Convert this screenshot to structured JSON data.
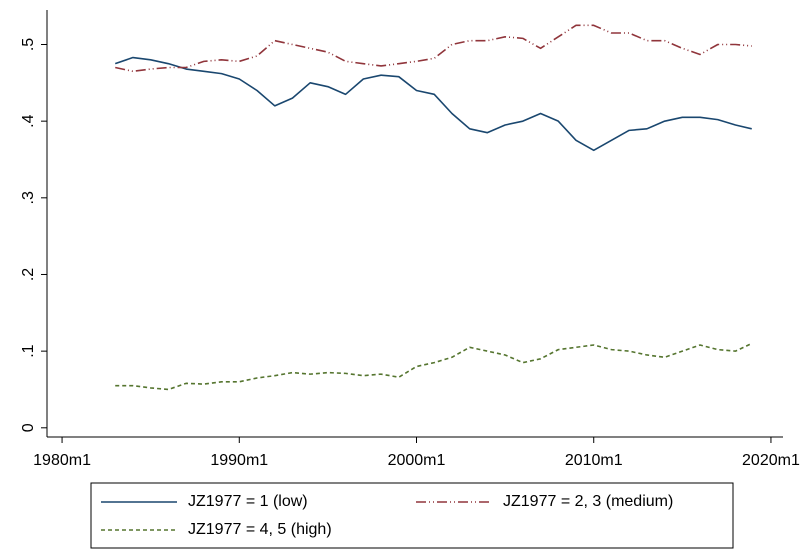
{
  "chart_data": {
    "type": "line",
    "x": [
      "1983m1",
      "1984m1",
      "1985m1",
      "1986m1",
      "1987m1",
      "1988m1",
      "1989m1",
      "1990m1",
      "1991m1",
      "1992m1",
      "1993m1",
      "1994m1",
      "1995m1",
      "1996m1",
      "1997m1",
      "1998m1",
      "1999m1",
      "2000m1",
      "2001m1",
      "2002m1",
      "2003m1",
      "2004m1",
      "2005m1",
      "2006m1",
      "2007m1",
      "2008m1",
      "2009m1",
      "2010m1",
      "2011m1",
      "2012m1",
      "2013m1",
      "2014m1",
      "2015m1",
      "2016m1",
      "2017m1",
      "2018m1",
      "2018m12"
    ],
    "series": [
      {
        "name": "JZ1977 = 1 (low)",
        "color": "#1a476f",
        "dash": "none",
        "values": [
          0.475,
          0.483,
          0.48,
          0.475,
          0.468,
          0.465,
          0.462,
          0.455,
          0.44,
          0.42,
          0.43,
          0.45,
          0.445,
          0.435,
          0.455,
          0.46,
          0.458,
          0.44,
          0.435,
          0.41,
          0.39,
          0.385,
          0.395,
          0.4,
          0.41,
          0.4,
          0.375,
          0.362,
          0.375,
          0.388,
          0.39,
          0.4,
          0.405,
          0.405,
          0.402,
          0.395,
          0.39
        ]
      },
      {
        "name": "JZ1977 = 2, 3 (medium)",
        "color": "#90353b",
        "dash": "10 3 1 3 1 3",
        "values": [
          0.47,
          0.465,
          0.468,
          0.47,
          0.47,
          0.478,
          0.48,
          0.478,
          0.485,
          0.505,
          0.5,
          0.495,
          0.49,
          0.478,
          0.475,
          0.472,
          0.475,
          0.478,
          0.482,
          0.5,
          0.505,
          0.505,
          0.51,
          0.508,
          0.495,
          0.51,
          0.525,
          0.525,
          0.515,
          0.515,
          0.505,
          0.505,
          0.495,
          0.487,
          0.5,
          0.5,
          0.498
        ]
      },
      {
        "name": "JZ1977 = 4, 5 (high)",
        "color": "#55752f",
        "dash": "4 3",
        "values": [
          0.055,
          0.055,
          0.052,
          0.05,
          0.058,
          0.057,
          0.06,
          0.06,
          0.065,
          0.068,
          0.072,
          0.07,
          0.072,
          0.071,
          0.068,
          0.07,
          0.066,
          0.08,
          0.085,
          0.092,
          0.105,
          0.1,
          0.095,
          0.085,
          0.09,
          0.102,
          0.105,
          0.108,
          0.102,
          0.1,
          0.095,
          0.092,
          0.1,
          0.108,
          0.102,
          0.1,
          0.11
        ]
      }
    ],
    "xlim": [
      1979.15,
      2020.68
    ],
    "xticks": [
      {
        "value": 1980,
        "label": "1980m1"
      },
      {
        "value": 1990,
        "label": "1990m1"
      },
      {
        "value": 2000,
        "label": "2000m1"
      },
      {
        "value": 2010,
        "label": "2010m1"
      },
      {
        "value": 2020,
        "label": "2020m1"
      }
    ],
    "ylim": [
      -0.012,
      0.545
    ],
    "yticks": [
      0,
      {
        "value": 0.1,
        "label": ".1"
      },
      {
        "value": 0.2,
        "label": ".2"
      },
      {
        "value": 0.3,
        "label": ".3"
      },
      {
        "value": 0.4,
        "label": ".4"
      },
      {
        "value": 0.5,
        "label": ".5"
      }
    ],
    "grid": false,
    "legend_position": "bottom"
  }
}
